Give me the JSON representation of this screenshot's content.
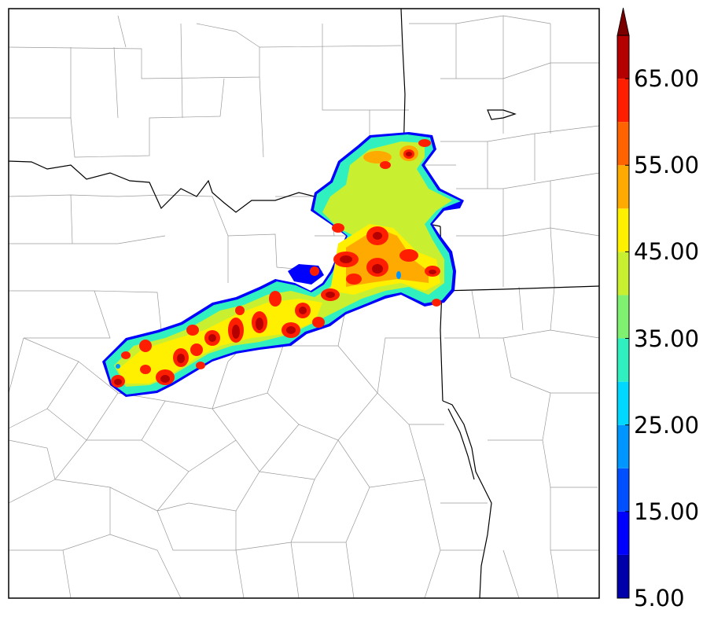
{
  "colorbar": {
    "tick_labels": [
      "5.00",
      "15.00",
      "25.00",
      "35.00",
      "45.00",
      "55.00",
      "65.00"
    ],
    "tick_values": [
      5,
      15,
      25,
      35,
      45,
      55,
      65
    ],
    "range": [
      5,
      70
    ],
    "extend": "max",
    "bins": [
      {
        "from": 5,
        "to": 10,
        "color": "#0000aa"
      },
      {
        "from": 10,
        "to": 15,
        "color": "#0000ff"
      },
      {
        "from": 15,
        "to": 20,
        "color": "#0050ff"
      },
      {
        "from": 20,
        "to": 25,
        "color": "#0096ff"
      },
      {
        "from": 25,
        "to": 30,
        "color": "#00d8ff"
      },
      {
        "from": 30,
        "to": 35,
        "color": "#30f0c0"
      },
      {
        "from": 35,
        "to": 40,
        "color": "#80f070"
      },
      {
        "from": 40,
        "to": 45,
        "color": "#c8f030"
      },
      {
        "from": 45,
        "to": 50,
        "color": "#fff000"
      },
      {
        "from": 50,
        "to": 55,
        "color": "#ffaa00"
      },
      {
        "from": 55,
        "to": 60,
        "color": "#ff6400"
      },
      {
        "from": 60,
        "to": 65,
        "color": "#ff1e00"
      },
      {
        "from": 65,
        "to": 70,
        "color": "#b40000"
      }
    ],
    "extend_color": "#7a0000"
  },
  "map": {
    "background": "#ffffff",
    "state_border_color": "#000000",
    "county_border_color": "#9a9a9a",
    "field_description_colors": {
      "edge": "#0000ff",
      "low": "#30f0c0",
      "mid": "#c8f030",
      "high": "#ff1e00",
      "peak": "#b40000"
    }
  }
}
